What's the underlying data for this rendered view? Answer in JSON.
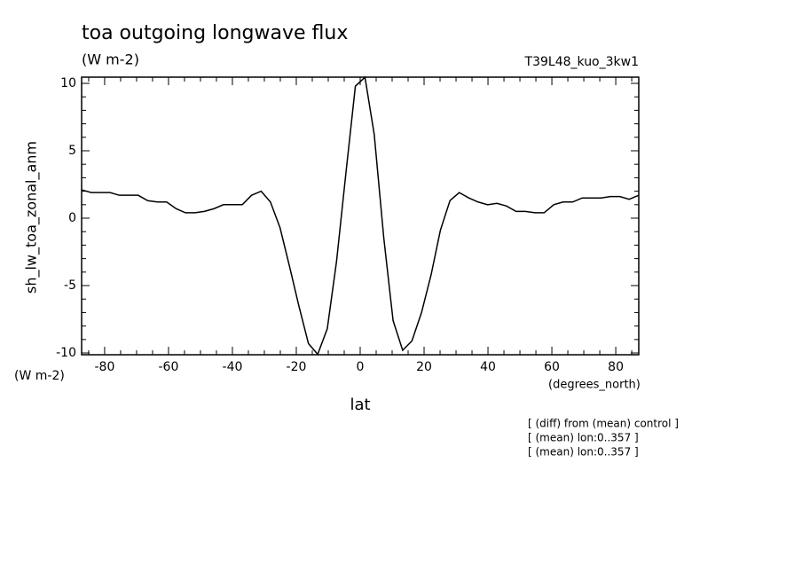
{
  "chart_data": {
    "type": "line",
    "title": "toa outgoing longwave flux",
    "subtitle": "(W m-2)",
    "run_label": "T39L48_kuo_3kw1",
    "y_label": "sh_lw_toa_zonal_anm",
    "y_units": "(W m-2)",
    "x_label": "lat",
    "x_units": "(degrees_north)",
    "notes": [
      "[ (diff) from (mean) control ]",
      "[ (mean) lon:0..357 ]",
      "[ (mean) lon:0..357 ]"
    ],
    "x": [
      -87.2,
      -84.2,
      -81.3,
      -78.3,
      -75.4,
      -72.4,
      -69.5,
      -66.5,
      -63.5,
      -60.6,
      -57.6,
      -54.7,
      -51.7,
      -48.8,
      -45.8,
      -42.8,
      -39.9,
      -36.9,
      -34.0,
      -31.0,
      -28.1,
      -25.1,
      -22.2,
      -19.2,
      -16.2,
      -13.3,
      -10.3,
      -7.4,
      -4.4,
      -1.5,
      1.5,
      4.4,
      7.4,
      10.3,
      13.3,
      16.2,
      19.2,
      22.2,
      25.1,
      28.1,
      31.0,
      34.0,
      36.9,
      39.9,
      42.8,
      45.8,
      48.8,
      51.7,
      54.7,
      57.6,
      60.6,
      63.5,
      66.5,
      69.5,
      72.4,
      75.4,
      78.3,
      81.3,
      84.2,
      87.2
    ],
    "series": [
      {
        "color": "#000000",
        "values": [
          2.1,
          1.9,
          1.9,
          1.9,
          1.7,
          1.7,
          1.7,
          1.3,
          1.2,
          1.2,
          0.7,
          0.4,
          0.4,
          0.5,
          0.7,
          1.0,
          1.0,
          1.0,
          1.7,
          2.0,
          1.2,
          -0.7,
          -3.5,
          -6.5,
          -9.3,
          -10.1,
          -8.2,
          -3.2,
          3.5,
          9.8,
          10.45,
          6.2,
          -1.5,
          -7.6,
          -9.8,
          -9.1,
          -7.0,
          -4.2,
          -0.9,
          1.3,
          1.9,
          1.5,
          1.2,
          1.0,
          1.1,
          0.9,
          0.5,
          0.5,
          0.4,
          0.4,
          1.0,
          1.2,
          1.2,
          1.5,
          1.5,
          1.5,
          1.6,
          1.6,
          1.4,
          1.7
        ]
      }
    ],
    "xlim": [
      -87.2,
      87.2
    ],
    "ylim": [
      -10.13,
      10.46
    ],
    "xticks": [
      -80,
      -60,
      -40,
      -20,
      0,
      20,
      40,
      60,
      80
    ],
    "yticks": [
      -10,
      -5,
      0,
      5,
      10
    ],
    "xminorticks": [
      -85,
      -75,
      -70,
      -65,
      -55,
      -50,
      -45,
      -35,
      -30,
      -25,
      -15,
      -10,
      -5,
      5,
      10,
      15,
      25,
      30,
      35,
      45,
      50,
      55,
      65,
      70,
      75,
      85
    ],
    "yminorticks": [
      -9,
      -8,
      -7,
      -6,
      -4,
      -3,
      -2,
      -1,
      1,
      2,
      3,
      4,
      6,
      7,
      8,
      9
    ],
    "grid": false
  }
}
